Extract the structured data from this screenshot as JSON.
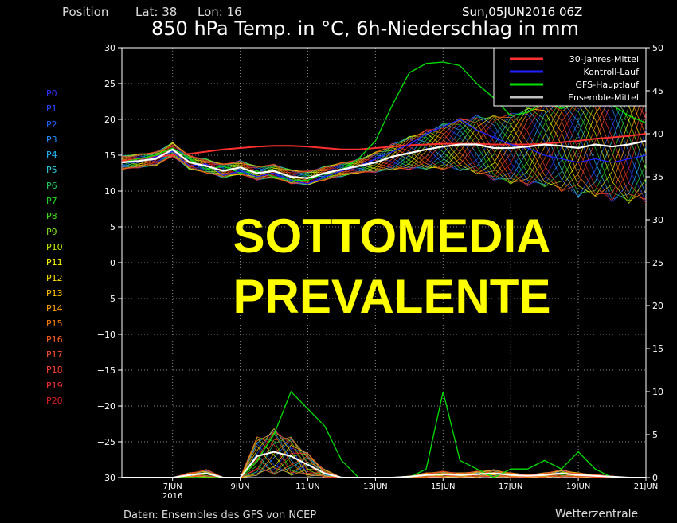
{
  "header": {
    "position_label": "Position",
    "lat_label": "Lat: 38",
    "lon_label": "Lon: 16",
    "run_time": "Sun,05JUN2016 06Z",
    "title": "850 hPa Temp. in °C, 6h-Niederschlag in mm"
  },
  "members": [
    "P0",
    "P1",
    "P2",
    "P3",
    "P4",
    "P5",
    "P6",
    "P7",
    "P8",
    "P9",
    "P10",
    "P11",
    "P12",
    "P13",
    "P14",
    "P15",
    "P16",
    "P17",
    "P18",
    "P19",
    "P20"
  ],
  "member_colors": [
    "#3030ff",
    "#2848ff",
    "#2060ff",
    "#2090ff",
    "#20b8ff",
    "#30d0e0",
    "#20d060",
    "#20e020",
    "#40e020",
    "#80e020",
    "#c0f000",
    "#ffff00",
    "#ffe000",
    "#ffc000",
    "#ffa000",
    "#ff8000",
    "#ff6020",
    "#ff5030",
    "#ff4030",
    "#ff3030",
    "#e02020"
  ],
  "overlay": {
    "line1": "SOTTOMEDIA",
    "line2": "PREVALENTE",
    "color": "#ffff00"
  },
  "footer": {
    "source": "Daten: Ensembles des GFS von NCEP",
    "brand": "Wetterzentrale"
  },
  "chart_data": {
    "type": "line",
    "x_ticks": [
      "7JUN",
      "9JUN",
      "11JUN",
      "13JUN",
      "15JUN",
      "17JUN",
      "19JUN",
      "21JUN"
    ],
    "x_tick_hours": [
      36,
      84,
      132,
      180,
      228,
      276,
      324,
      372
    ],
    "x_year_label": "2016",
    "x_range_hours": [
      0,
      372
    ],
    "y_left_range": [
      -30,
      30
    ],
    "y_left_ticks": [
      30,
      25,
      20,
      15,
      10,
      5,
      0,
      -5,
      -10,
      -15,
      -20,
      -25,
      -30
    ],
    "y_right_range": [
      0,
      50
    ],
    "y_right_ticks": [
      50,
      45,
      40,
      35,
      30,
      25,
      20,
      15,
      10,
      5,
      0
    ],
    "grid": true,
    "legend_position": "top-right",
    "legend": [
      {
        "name": "30-Jahres-Mittel",
        "color": "#ff3030"
      },
      {
        "name": "Kontroll-Lauf",
        "color": "#2020ff"
      },
      {
        "name": "GFS-Hauptlauf",
        "color": "#00e000"
      },
      {
        "name": "Ensemble-Mittel",
        "color": "#c0c0c0"
      }
    ],
    "temp_x_hours": [
      0,
      12,
      24,
      36,
      48,
      60,
      72,
      84,
      96,
      108,
      120,
      132,
      144,
      156,
      168,
      180,
      192,
      204,
      216,
      228,
      240,
      252,
      264,
      276,
      288,
      300,
      312,
      324,
      336,
      348,
      360,
      372
    ],
    "climatology_temp": [
      14.2,
      14.5,
      14.8,
      15.0,
      15.2,
      15.5,
      15.8,
      16.0,
      16.2,
      16.3,
      16.3,
      16.2,
      16.0,
      15.8,
      15.8,
      16.0,
      16.2,
      16.4,
      16.5,
      16.6,
      16.6,
      16.6,
      16.5,
      16.5,
      16.5,
      16.6,
      16.8,
      17.0,
      17.3,
      17.5,
      17.7,
      18.0
    ],
    "ensemble_mean_temp": [
      14.0,
      14.2,
      14.5,
      15.8,
      14.0,
      13.5,
      12.8,
      13.3,
      12.5,
      12.8,
      12.0,
      11.8,
      12.5,
      13.0,
      13.5,
      14.0,
      14.8,
      15.3,
      15.8,
      16.2,
      16.5,
      16.5,
      16.0,
      16.0,
      16.2,
      16.5,
      16.3,
      16.0,
      16.5,
      16.2,
      16.5,
      17.0
    ],
    "control_temp": [
      14.0,
      14.0,
      14.8,
      15.5,
      13.5,
      13.8,
      12.2,
      12.8,
      12.0,
      12.5,
      11.5,
      11.0,
      12.0,
      12.8,
      13.5,
      14.5,
      15.5,
      16.5,
      18.0,
      19.0,
      20.0,
      18.5,
      17.5,
      16.5,
      16.0,
      15.0,
      14.5,
      14.0,
      14.5,
      14.0,
      14.5,
      15.0
    ],
    "gfs_main_temp": [
      14.0,
      14.5,
      15.0,
      16.0,
      14.5,
      13.0,
      13.5,
      12.5,
      12.8,
      12.0,
      11.5,
      11.5,
      12.5,
      13.0,
      14.5,
      17.0,
      22.0,
      26.5,
      27.8,
      28.0,
      27.5,
      25.0,
      23.0,
      20.5,
      21.0,
      22.5,
      21.5,
      22.5,
      23.0,
      22.0,
      20.5,
      19.5
    ],
    "ensemble_mean_precip": [
      0,
      0,
      0,
      0,
      0.3,
      0.5,
      0,
      0,
      2.5,
      3.0,
      2.5,
      1.5,
      0.5,
      0,
      0,
      0,
      0,
      0.1,
      0.3,
      0.4,
      0.3,
      0.4,
      0.5,
      0.3,
      0.2,
      0.3,
      0.5,
      0.3,
      0.2,
      0.1,
      0,
      0
    ],
    "gfs_main_precip": [
      0,
      0,
      0,
      0,
      0,
      0,
      0,
      0,
      2,
      5,
      10,
      8,
      6,
      2,
      0,
      0,
      0,
      0,
      1,
      10,
      2,
      1,
      0,
      1,
      1,
      2,
      1,
      3,
      1,
      0,
      0,
      0
    ],
    "units": {
      "temperature": "°C",
      "precipitation": "mm"
    }
  }
}
